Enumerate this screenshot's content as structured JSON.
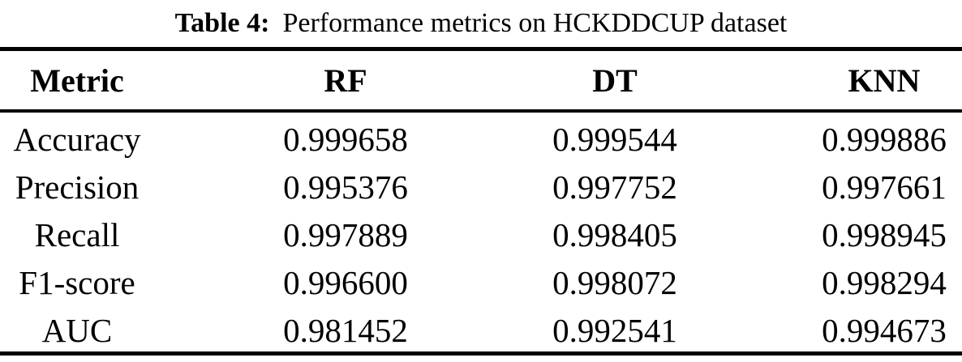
{
  "caption": {
    "label": "Table 4:",
    "text": "Performance metrics on HCKDDCUP dataset"
  },
  "table": {
    "columns": [
      "Metric",
      "RF",
      "DT",
      "KNN"
    ],
    "rows": [
      {
        "metric": "Accuracy",
        "values": [
          "0.999658",
          "0.999544",
          "0.999886"
        ]
      },
      {
        "metric": "Precision",
        "values": [
          "0.995376",
          "0.997752",
          "0.997661"
        ]
      },
      {
        "metric": "Recall",
        "values": [
          "0.997889",
          "0.998405",
          "0.998945"
        ]
      },
      {
        "metric": "F1-score",
        "values": [
          "0.996600",
          "0.998072",
          "0.998294"
        ]
      },
      {
        "metric": "AUC",
        "values": [
          "0.981452",
          "0.992541",
          "0.994673"
        ]
      }
    ]
  },
  "colors": {
    "text": "#000000",
    "background": "#ffffff",
    "rule": "#000000"
  }
}
